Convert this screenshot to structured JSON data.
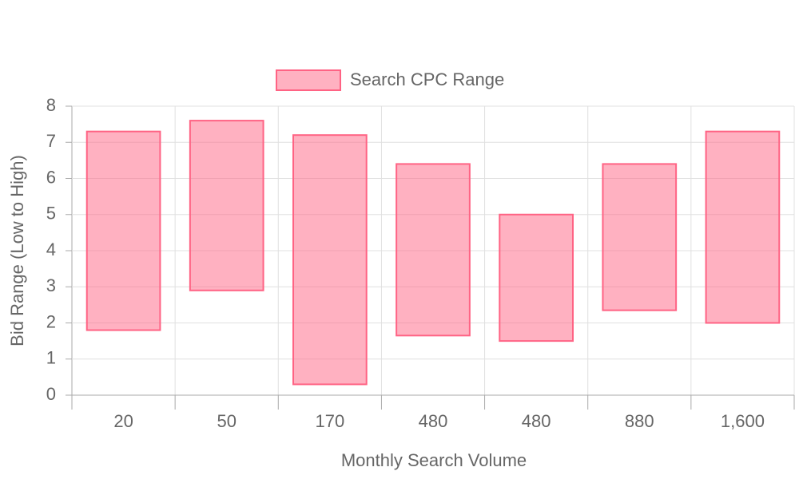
{
  "chart_data": {
    "type": "bar",
    "legend": "top",
    "grid": true,
    "x_label": "Monthly Search Volume",
    "y_label": "Bid Range (Low to High)",
    "categories": [
      "20",
      "50",
      "170",
      "480",
      "480",
      "880",
      "1,600"
    ],
    "series": [
      {
        "name": "Search CPC Range",
        "color": "#ff6384",
        "values": [
          [
            1.8,
            7.3
          ],
          [
            2.9,
            7.6
          ],
          [
            0.3,
            7.2
          ],
          [
            1.65,
            6.4
          ],
          [
            1.5,
            5.0
          ],
          [
            2.35,
            6.4
          ],
          [
            2.0,
            7.3
          ]
        ]
      }
    ],
    "ylim": [
      0,
      8
    ],
    "yticks": [
      0,
      1,
      2,
      3,
      4,
      5,
      6,
      7,
      8
    ]
  }
}
